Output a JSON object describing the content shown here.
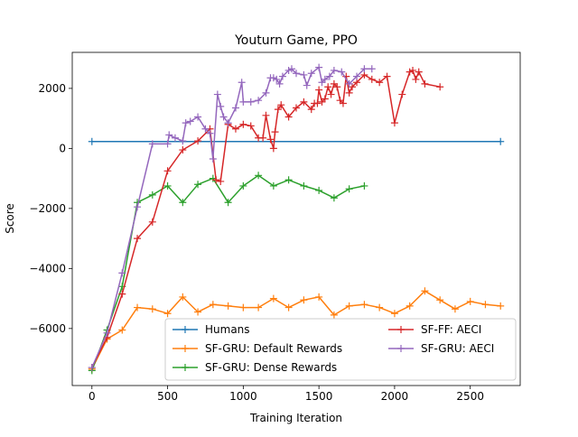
{
  "chart_data": {
    "type": "line",
    "title": "Youturn Game, PPO",
    "xlabel": "Training Iteration",
    "ylabel": "Score",
    "xlim": [
      -130,
      2830
    ],
    "ylim": [
      -7900,
      3200
    ],
    "xticks": [
      0,
      500,
      1000,
      1500,
      2000,
      2500
    ],
    "yticks": [
      -6000,
      -4000,
      -2000,
      0,
      2000
    ],
    "xtick_labels": [
      "0",
      "500",
      "1000",
      "1500",
      "2000",
      "2500"
    ],
    "ytick_labels": [
      "−6000",
      "−4000",
      "−2000",
      "0",
      "2000"
    ],
    "legend_position": "lower-right",
    "series": [
      {
        "name": "Humans",
        "color": "#1f77b4",
        "x": [
          0,
          2700
        ],
        "y": [
          230,
          230
        ]
      },
      {
        "name": "SF-GRU: Default Rewards",
        "color": "#ff7f0e",
        "x": [
          0,
          100,
          200,
          300,
          400,
          500,
          600,
          700,
          800,
          900,
          1000,
          1100,
          1200,
          1300,
          1400,
          1500,
          1600,
          1700,
          1800,
          1900,
          2000,
          2100,
          2200,
          2300,
          2400,
          2500,
          2600,
          2700
        ],
        "y": [
          -7350,
          -6350,
          -6050,
          -5300,
          -5350,
          -5500,
          -4950,
          -5450,
          -5200,
          -5250,
          -5300,
          -5300,
          -5000,
          -5300,
          -5050,
          -4950,
          -5550,
          -5250,
          -5200,
          -5300,
          -5500,
          -5250,
          -4750,
          -5050,
          -5350,
          -5100,
          -5200,
          -5250
        ]
      },
      {
        "name": "SF-GRU: Dense Rewards",
        "color": "#2ca02c",
        "x": [
          0,
          100,
          200,
          300,
          400,
          500,
          600,
          700,
          800,
          900,
          1000,
          1100,
          1200,
          1300,
          1400,
          1500,
          1600,
          1700,
          1800
        ],
        "y": [
          -7400,
          -6050,
          -4600,
          -1800,
          -1550,
          -1250,
          -1800,
          -1200,
          -1000,
          -1800,
          -1250,
          -900,
          -1250,
          -1050,
          -1250,
          -1400,
          -1650,
          -1350,
          -1250
        ]
      },
      {
        "name": "SF-FF: AECI",
        "color": "#d62728",
        "x": [
          0,
          100,
          200,
          300,
          400,
          500,
          600,
          700,
          780,
          820,
          850,
          900,
          950,
          1000,
          1050,
          1100,
          1130,
          1150,
          1180,
          1200,
          1210,
          1230,
          1250,
          1300,
          1350,
          1400,
          1450,
          1470,
          1490,
          1500,
          1520,
          1540,
          1560,
          1580,
          1600,
          1620,
          1640,
          1660,
          1680,
          1700,
          1720,
          1750,
          1800,
          1850,
          1900,
          1950,
          2000,
          2050,
          2100,
          2120,
          2140,
          2160,
          2200,
          2300
        ],
        "y": [
          -7300,
          -6300,
          -4850,
          -3000,
          -2450,
          -750,
          -50,
          250,
          650,
          -1050,
          -1100,
          800,
          650,
          800,
          750,
          350,
          350,
          1100,
          300,
          0,
          550,
          1300,
          1450,
          1050,
          1350,
          1550,
          1300,
          1500,
          1500,
          1950,
          1550,
          1650,
          2050,
          1800,
          2150,
          2050,
          1600,
          1500,
          2400,
          1850,
          2050,
          2200,
          2450,
          2300,
          2200,
          2400,
          850,
          1800,
          2550,
          2600,
          2300,
          2550,
          2150,
          2050
        ]
      },
      {
        "name": "SF-GRU: AECI",
        "color": "#9467bd",
        "x": [
          0,
          100,
          200,
          300,
          400,
          500,
          510,
          550,
          600,
          620,
          650,
          700,
          750,
          780,
          800,
          830,
          850,
          870,
          900,
          950,
          990,
          1000,
          1050,
          1100,
          1150,
          1180,
          1200,
          1220,
          1240,
          1260,
          1300,
          1320,
          1350,
          1400,
          1420,
          1450,
          1500,
          1520,
          1540,
          1570,
          1600,
          1650,
          1700,
          1750,
          1800,
          1850
        ],
        "y": [
          -7300,
          -6150,
          -4150,
          -1950,
          150,
          150,
          450,
          350,
          250,
          850,
          900,
          1050,
          650,
          500,
          -350,
          1800,
          1400,
          1050,
          850,
          1350,
          2200,
          1550,
          1550,
          1600,
          1850,
          2350,
          2350,
          2300,
          2150,
          2400,
          2600,
          2650,
          2500,
          2450,
          2100,
          2500,
          2700,
          2200,
          2300,
          2400,
          2600,
          2550,
          2150,
          2400,
          2650,
          2650
        ]
      }
    ]
  }
}
